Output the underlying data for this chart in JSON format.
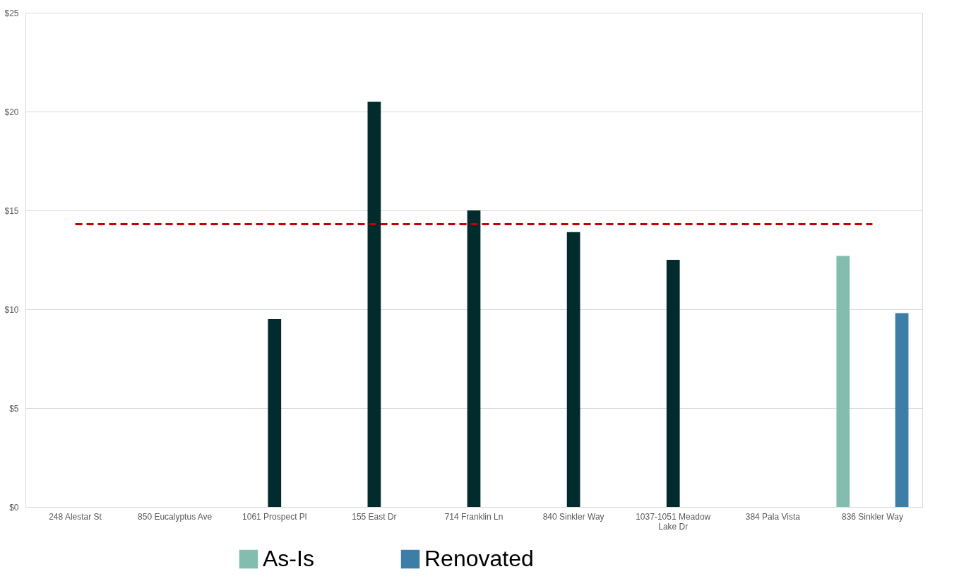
{
  "chart_data": {
    "type": "bar",
    "categories": [
      "248 Alestar St",
      "850 Eucalyptus Ave",
      "1061 Prospect Pl",
      "155 East Dr",
      "714 Franklin Ln",
      "840 Sinkler Way",
      "1037-1051 Meadow Lake Dr",
      "384 Pala Vista",
      "836 Sinkler Way"
    ],
    "series": [
      {
        "name": "As-Is",
        "color": "#82bdb0",
        "values": [
          null,
          null,
          null,
          null,
          null,
          null,
          null,
          null,
          12.7
        ]
      },
      {
        "color": "#022b2e",
        "values": [
          null,
          null,
          9.5,
          20.5,
          15.0,
          13.9,
          12.5,
          null,
          null
        ]
      },
      {
        "name": "Renovated",
        "color": "#3d7ea8",
        "values": [
          null,
          null,
          null,
          null,
          null,
          null,
          null,
          null,
          9.8
        ]
      }
    ],
    "ylim": [
      0,
      25
    ],
    "yticks": [
      {
        "value": 0,
        "label": "$0"
      },
      {
        "value": 5,
        "label": "$5"
      },
      {
        "value": 10,
        "label": "$10"
      },
      {
        "value": 15,
        "label": "$15"
      },
      {
        "value": 20,
        "label": "$20"
      },
      {
        "value": 25,
        "label": "$25"
      }
    ],
    "ref_lines": [
      {
        "axis": "y",
        "value": 14.3,
        "color": "#c00000",
        "line_style": "dashed"
      }
    ],
    "grid": "y",
    "legend": "bottom"
  }
}
